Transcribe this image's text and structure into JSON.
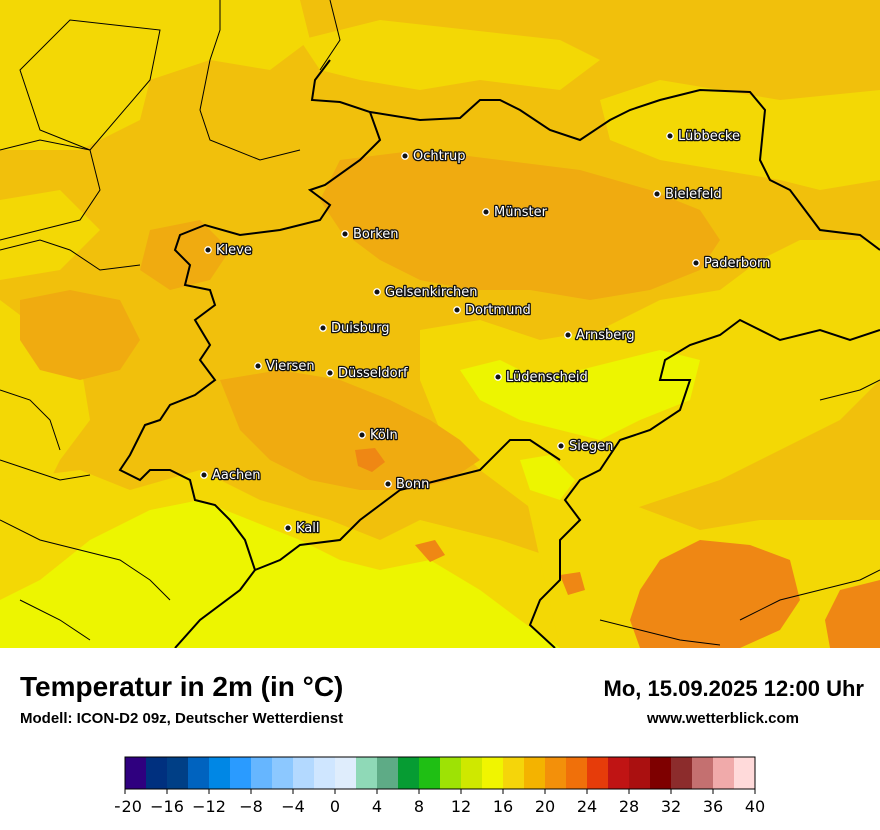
{
  "map": {
    "colors": {
      "t14": "#edf500",
      "t16": "#f3d805",
      "t18": "#f1c00c",
      "t20": "#f0ab10",
      "t22": "#ef8714",
      "border": "#000000"
    },
    "cities": [
      {
        "name": "Lübbecke"
      },
      {
        "name": "Ochtrup"
      },
      {
        "name": "Bielefeld"
      },
      {
        "name": "Münster"
      },
      {
        "name": "Kleve"
      },
      {
        "name": "Borken"
      },
      {
        "name": "Paderborn"
      },
      {
        "name": "Gelsenkirchen"
      },
      {
        "name": "Dortmund"
      },
      {
        "name": "Duisburg"
      },
      {
        "name": "Arnsberg"
      },
      {
        "name": "Viersen"
      },
      {
        "name": "Düsseldorf"
      },
      {
        "name": "Lüdenscheid"
      },
      {
        "name": "Köln"
      },
      {
        "name": "Siegen"
      },
      {
        "name": "Aachen"
      },
      {
        "name": "Bonn"
      },
      {
        "name": "Kall"
      }
    ]
  },
  "footer": {
    "title": "Temperatur in 2m (in °C)",
    "model": "Modell: ICON-D2 09z, Deutscher Wetterdienst",
    "datetime": "Mo, 15.09.2025 12:00 Uhr",
    "website": "www.wetterblick.com"
  },
  "colorbar": {
    "colors": [
      "#2f007f",
      "#00307f",
      "#003f86",
      "#0063bf",
      "#0087e5",
      "#2a9bff",
      "#66b6ff",
      "#8cc8ff",
      "#b3d9ff",
      "#cfe6ff",
      "#dfedfc",
      "#8fd9b7",
      "#5eab86",
      "#069c33",
      "#1fbf14",
      "#9ee205",
      "#cfe800",
      "#f0f500",
      "#f5d50a",
      "#f4b300",
      "#f3900a",
      "#f0700a",
      "#e63c0a",
      "#c01414",
      "#aa1010",
      "#7e0000",
      "#8c2c2c",
      "#c47070",
      "#f0aaaa",
      "#ffdada"
    ],
    "tick_labels": [
      "−20",
      "−16",
      "−12",
      "−8",
      "−4",
      "0",
      "4",
      "8",
      "12",
      "16",
      "20",
      "24",
      "28",
      "32",
      "36",
      "40"
    ]
  }
}
